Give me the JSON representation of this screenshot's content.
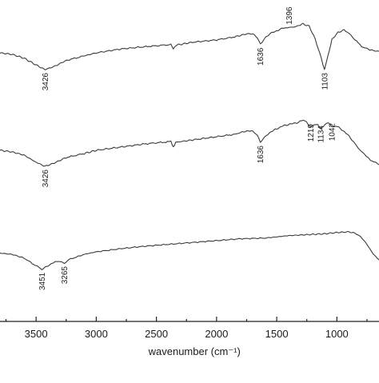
{
  "chart_data": {
    "type": "line",
    "title": "",
    "xlabel": "wavenumber (cm⁻¹)",
    "ylabel": "",
    "xlim": [
      3800,
      650
    ],
    "x_reversed": true,
    "x_ticks": [
      3500,
      3000,
      2500,
      2000,
      1500,
      1000
    ],
    "x_tick_labels": [
      "3500",
      "3000",
      "2500",
      "2000",
      "1500",
      "1000"
    ],
    "grid": false,
    "legend": "none",
    "series": [
      {
        "points": [
          [
            3800,
            0.62
          ],
          [
            3700,
            0.6
          ],
          [
            3600,
            0.55
          ],
          [
            3500,
            0.46
          ],
          [
            3426,
            0.4
          ],
          [
            3350,
            0.44
          ],
          [
            3250,
            0.52
          ],
          [
            3100,
            0.58
          ],
          [
            3000,
            0.62
          ],
          [
            2800,
            0.67
          ],
          [
            2600,
            0.7
          ],
          [
            2450,
            0.72
          ],
          [
            2380,
            0.73
          ],
          [
            2360,
            0.67
          ],
          [
            2340,
            0.72
          ],
          [
            2200,
            0.76
          ],
          [
            2000,
            0.79
          ],
          [
            1850,
            0.83
          ],
          [
            1750,
            0.87
          ],
          [
            1700,
            0.87
          ],
          [
            1660,
            0.82
          ],
          [
            1636,
            0.73
          ],
          [
            1610,
            0.79
          ],
          [
            1560,
            0.87
          ],
          [
            1500,
            0.91
          ],
          [
            1440,
            0.95
          ],
          [
            1396,
            0.95
          ],
          [
            1340,
            0.97
          ],
          [
            1280,
            1.0
          ],
          [
            1230,
            0.97
          ],
          [
            1180,
            0.8
          ],
          [
            1130,
            0.55
          ],
          [
            1103,
            0.4
          ],
          [
            1075,
            0.57
          ],
          [
            1040,
            0.8
          ],
          [
            990,
            0.89
          ],
          [
            940,
            0.92
          ],
          [
            900,
            0.88
          ],
          [
            850,
            0.79
          ],
          [
            780,
            0.69
          ],
          [
            700,
            0.65
          ],
          [
            650,
            0.64
          ]
        ],
        "peak_labels": [
          "3426",
          "1636",
          "1396",
          "1103"
        ]
      },
      {
        "points": [
          [
            3800,
            0.62
          ],
          [
            3700,
            0.6
          ],
          [
            3600,
            0.56
          ],
          [
            3500,
            0.47
          ],
          [
            3426,
            0.42
          ],
          [
            3350,
            0.46
          ],
          [
            3250,
            0.53
          ],
          [
            3100,
            0.58
          ],
          [
            3000,
            0.62
          ],
          [
            2800,
            0.66
          ],
          [
            2600,
            0.7
          ],
          [
            2450,
            0.72
          ],
          [
            2380,
            0.73
          ],
          [
            2360,
            0.66
          ],
          [
            2340,
            0.72
          ],
          [
            2200,
            0.75
          ],
          [
            2000,
            0.79
          ],
          [
            1850,
            0.82
          ],
          [
            1760,
            0.86
          ],
          [
            1700,
            0.86
          ],
          [
            1660,
            0.81
          ],
          [
            1636,
            0.72
          ],
          [
            1610,
            0.77
          ],
          [
            1560,
            0.84
          ],
          [
            1500,
            0.89
          ],
          [
            1440,
            0.93
          ],
          [
            1380,
            0.95
          ],
          [
            1320,
            0.97
          ],
          [
            1280,
            1.0
          ],
          [
            1245,
            0.96
          ],
          [
            1219,
            0.91
          ],
          [
            1190,
            0.93
          ],
          [
            1160,
            0.95
          ],
          [
            1134,
            0.89
          ],
          [
            1100,
            0.94
          ],
          [
            1070,
            0.96
          ],
          [
            1042,
            0.92
          ],
          [
            1010,
            0.93
          ],
          [
            960,
            0.88
          ],
          [
            900,
            0.8
          ],
          [
            850,
            0.7
          ],
          [
            780,
            0.58
          ],
          [
            720,
            0.5
          ],
          [
            650,
            0.44
          ]
        ],
        "peak_labels": [
          "3426",
          "1636",
          "1219",
          "1134",
          "1042"
        ]
      },
      {
        "points": [
          [
            3800,
            0.66
          ],
          [
            3700,
            0.64
          ],
          [
            3600,
            0.58
          ],
          [
            3520,
            0.48
          ],
          [
            3451,
            0.4
          ],
          [
            3400,
            0.46
          ],
          [
            3340,
            0.52
          ],
          [
            3300,
            0.53
          ],
          [
            3265,
            0.5
          ],
          [
            3220,
            0.56
          ],
          [
            3100,
            0.64
          ],
          [
            3000,
            0.68
          ],
          [
            2800,
            0.73
          ],
          [
            2600,
            0.77
          ],
          [
            2400,
            0.8
          ],
          [
            2200,
            0.83
          ],
          [
            2000,
            0.86
          ],
          [
            1800,
            0.89
          ],
          [
            1600,
            0.9
          ],
          [
            1500,
            0.92
          ],
          [
            1400,
            0.94
          ],
          [
            1300,
            0.95
          ],
          [
            1200,
            0.96
          ],
          [
            1100,
            0.97
          ],
          [
            1000,
            0.99
          ],
          [
            900,
            1.0
          ],
          [
            850,
            0.98
          ],
          [
            800,
            0.92
          ],
          [
            750,
            0.8
          ],
          [
            700,
            0.65
          ],
          [
            650,
            0.55
          ]
        ],
        "peak_labels": [
          "3451",
          "3265"
        ]
      }
    ]
  }
}
